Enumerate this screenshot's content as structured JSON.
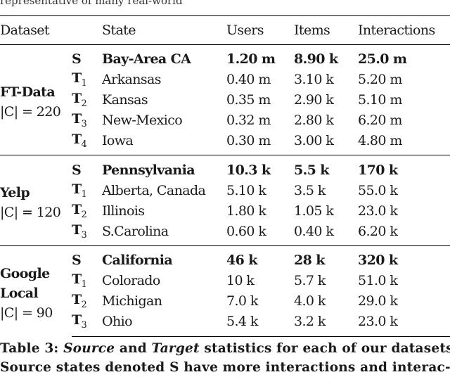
{
  "top_snippet": "representative of many real-world",
  "table": {
    "headers": {
      "dataset": "Dataset",
      "state": "State",
      "users": "Users",
      "items": "Items",
      "interactions": "Interactions"
    },
    "groups": [
      {
        "name": "FT-Data",
        "count_label": "|C| = 220",
        "rows": [
          {
            "role": "S",
            "sub": "",
            "state": "Bay-Area CA",
            "users": "1.20 m",
            "items": "8.90 k",
            "interactions": "25.0 m",
            "bold": true
          },
          {
            "role": "T",
            "sub": "1",
            "state": "Arkansas",
            "users": "0.40 m",
            "items": "3.10 k",
            "interactions": "5.20 m",
            "bold": false
          },
          {
            "role": "T",
            "sub": "2",
            "state": "Kansas",
            "users": "0.35 m",
            "items": "2.90 k",
            "interactions": "5.10 m",
            "bold": false
          },
          {
            "role": "T",
            "sub": "3",
            "state": "New-Mexico",
            "users": "0.32 m",
            "items": "2.80 k",
            "interactions": "6.20 m",
            "bold": false
          },
          {
            "role": "T",
            "sub": "4",
            "state": "Iowa",
            "users": "0.30 m",
            "items": "3.00 k",
            "interactions": "4.80 m",
            "bold": false
          }
        ]
      },
      {
        "name": "Yelp",
        "count_label": "|C| = 120",
        "rows": [
          {
            "role": "S",
            "sub": "",
            "state": "Pennsylvania",
            "users": "10.3 k",
            "items": "5.5 k",
            "interactions": "170 k",
            "bold": true
          },
          {
            "role": "T",
            "sub": "1",
            "state": "Alberta, Canada",
            "users": "5.10 k",
            "items": "3.5 k",
            "interactions": "55.0 k",
            "bold": false
          },
          {
            "role": "T",
            "sub": "2",
            "state": "Illinois",
            "users": "1.80 k",
            "items": "1.05 k",
            "interactions": "23.0 k",
            "bold": false
          },
          {
            "role": "T",
            "sub": "3",
            "state": "S.Carolina",
            "users": "0.60 k",
            "items": "0.40 k",
            "interactions": "6.20 k",
            "bold": false
          }
        ]
      },
      {
        "name": "Google Local",
        "name_line1": "Google",
        "name_line2": "Local",
        "count_label": "|C| = 90",
        "rows": [
          {
            "role": "S",
            "sub": "",
            "state": "California",
            "users": "46 k",
            "items": "28 k",
            "interactions": "320 k",
            "bold": true
          },
          {
            "role": "T",
            "sub": "1",
            "state": "Colorado",
            "users": "10 k",
            "items": "5.7 k",
            "interactions": "51.0 k",
            "bold": false
          },
          {
            "role": "T",
            "sub": "2",
            "state": "Michigan",
            "users": "7.0 k",
            "items": "4.0 k",
            "interactions": "29.0 k",
            "bold": false
          },
          {
            "role": "T",
            "sub": "3",
            "state": "Ohio",
            "users": "5.4 k",
            "items": "3.2 k",
            "interactions": "23.0 k",
            "bold": false
          }
        ]
      }
    ]
  },
  "caption": {
    "line1_prefix": "Table 3: ",
    "line1_em1": "Source",
    "line1_mid": " and ",
    "line1_em2": "Target",
    "line1_suffix": " statistics for each of our datasets.",
    "line2": "Source states denoted S have more interactions and interac-"
  }
}
